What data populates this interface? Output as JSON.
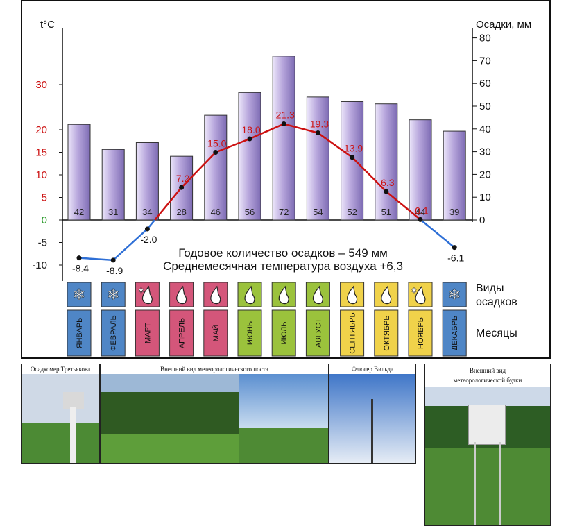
{
  "chart_data": {
    "type": "bar+line",
    "left_axis_label": "t°C",
    "right_axis_label": "Осадки, мм",
    "temp_ticks": [
      30,
      20,
      15,
      10,
      5,
      0,
      -5,
      -10
    ],
    "precip_ticks": [
      80,
      70,
      60,
      50,
      40,
      30,
      20,
      10,
      0
    ],
    "months": [
      "ЯНВАРЬ",
      "ФЕВРАЛЬ",
      "МАРТ",
      "АПРЕЛЬ",
      "МАЙ",
      "ИЮНЬ",
      "ИЮЛЬ",
      "АВГУСТ",
      "СЕНТЯБРЬ",
      "ОКТЯБРЬ",
      "НОЯБРЬ",
      "ДЕКАБРЬ"
    ],
    "precipitation": [
      42,
      31,
      34,
      28,
      46,
      56,
      72,
      54,
      52,
      51,
      44,
      39
    ],
    "temperature": [
      -8.4,
      -8.9,
      -2.0,
      7.2,
      15.0,
      18.0,
      21.3,
      19.3,
      13.9,
      6.3,
      0.1,
      -6.1
    ],
    "temperature_labels": [
      "-8.4",
      "-8.9",
      "-2.0",
      "7.2",
      "15.0",
      "18.0",
      "21.3",
      "19.3",
      "13.9",
      "6.3",
      "0.1",
      "-6.1"
    ],
    "precip_types": [
      "snow",
      "snow",
      "mixed",
      "rain",
      "rain",
      "rain",
      "rain",
      "rain",
      "rain",
      "rain",
      "mixed",
      "snow"
    ],
    "season_colors": [
      "#4f86c6",
      "#4f86c6",
      "#d4567a",
      "#d4567a",
      "#d4567a",
      "#9bc23c",
      "#9bc23c",
      "#9bc23c",
      "#f0d24a",
      "#f0d24a",
      "#f0d24a",
      "#4f86c6"
    ],
    "bar_color": "#b7a6dc",
    "warm_line_color": "#cc1111",
    "cold_line_color": "#2e6fd6"
  },
  "info": {
    "line1": "Годовое количество осадков – 549 мм",
    "line2": "Среднемесячная температура воздуха +6,3"
  },
  "rows": {
    "precip_types_label_1": "Виды",
    "precip_types_label_2": "осадков",
    "months_label": "Месяцы"
  },
  "photos": {
    "p1": "Осадкомер Третьякова",
    "p2": "Внешний вид метеорологического поста",
    "p3": "Флюгер Вильда",
    "p4_line1": "Внешний вид",
    "p4_line2": "метеорологической будки"
  }
}
